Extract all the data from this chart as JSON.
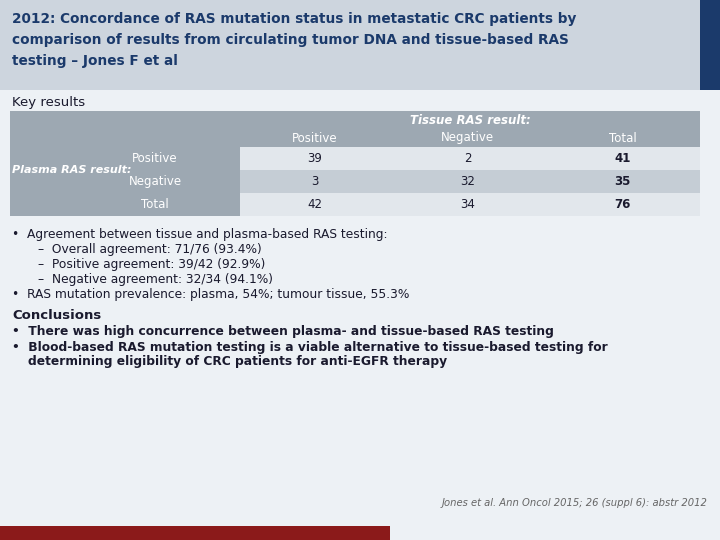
{
  "title_line1": "2012: Concordance of RAS mutation status in metastatic CRC patients by",
  "title_line2": "comparison of results from circulating tumor DNA and tissue-based RAS",
  "title_line3": "testing – Jones F et al",
  "title_bg": "#cdd5de",
  "title_stripe": "#1b3a6b",
  "section_label": "Key results",
  "table_header_span": "Tissue RAS result:",
  "table_col_headers": [
    "Positive",
    "Negative",
    "Total"
  ],
  "table_row_label_main": "Plasma RAS result:",
  "table_row_labels": [
    "Positive",
    "Negative",
    "Total"
  ],
  "table_data": [
    [
      39,
      2,
      41
    ],
    [
      3,
      32,
      35
    ],
    [
      42,
      34,
      76
    ]
  ],
  "table_bg_left": "#9da8b2",
  "table_bg_header": "#9da8b2",
  "table_bg_subheader": "#9da8b2",
  "table_bg_light": "#e2e7ec",
  "table_bg_medium": "#c5cdd5",
  "bullet_points": [
    "Agreement between tissue and plasma-based RAS testing:",
    "sub:Overall agreement: 71/76 (93.4%)",
    "sub:Positive agreement: 39/42 (92.9%)",
    "sub:Negative agreement: 32/34 (94.1%)",
    "RAS mutation prevalence: plasma, 54%; tumour tissue, 55.3%"
  ],
  "conclusions_title": "Conclusions",
  "conclusions": [
    "There was high concurrence between plasma- and tissue-based RAS testing",
    "Blood-based RAS mutation testing is a viable alternative to tissue-based testing for\ndetermining eligibility of CRC patients for anti-EGFR therapy"
  ],
  "citation": "Jones et al. Ann Oncol 2015; 26 (suppl 6): abstr 2012",
  "footer_color": "#8b1a1a",
  "bg_color": "#edf1f5",
  "text_dark": "#1a1a2e",
  "text_navy": "#1b3a6b",
  "white": "#ffffff",
  "gray_text": "#666666"
}
